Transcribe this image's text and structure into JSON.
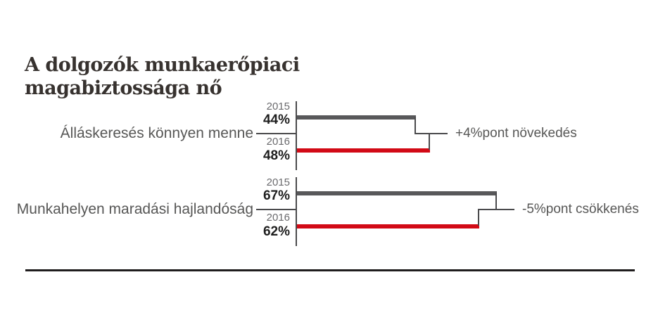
{
  "title": {
    "line1": "A dolgozók munkaerőpiaci",
    "line2": "magabiztossága nő"
  },
  "chart_data": {
    "type": "bar",
    "orientation": "horizontal",
    "unit": "%pont",
    "value_axis_hidden": true,
    "grid": false,
    "legend": "none",
    "series_years": [
      "2015",
      "2016"
    ],
    "groups": [
      {
        "label": "Álláskeresés könnyen menne",
        "series": [
          {
            "year": "2015",
            "value": 44,
            "value_label": "44%",
            "color": "#58585a"
          },
          {
            "year": "2016",
            "value": 48,
            "value_label": "48%",
            "color": "#d20a16"
          }
        ],
        "change": 4,
        "change_annotation": "+4%pont növekedés"
      },
      {
        "label": "Munkahelyen maradási hajlandóság",
        "series": [
          {
            "year": "2015",
            "value": 67,
            "value_label": "67%",
            "color": "#58585a"
          },
          {
            "year": "2016",
            "value": 62,
            "value_label": "62%",
            "color": "#d20a16"
          }
        ],
        "change": -5,
        "change_annotation": "-5%pont csökkenés"
      }
    ]
  },
  "colors": {
    "bar_2015": "#58585a",
    "bar_2016": "#d20a16",
    "connector_line": "#4a4a4c",
    "title_text": "#37322f",
    "label_text": "#575756",
    "year_text": "#6b6b6e",
    "value_text": "#1e1e1e",
    "bottom_rule": "#1f1c1d"
  }
}
